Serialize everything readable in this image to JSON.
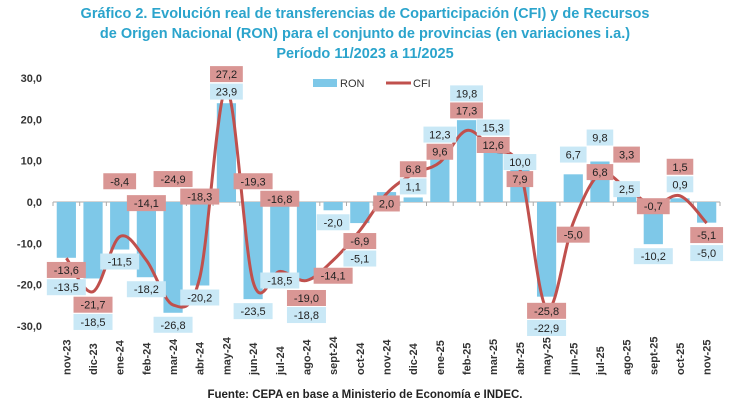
{
  "chart_data": {
    "type": "bar+line",
    "title_lines": [
      "Gráfico 2. Evolución real de transferencias de Coparticipación (CFI) y de Recursos",
      "de Origen Nacional (RON) para el conjunto de provincias (en variaciones i.a.)",
      "Período 11/2023 a 11/2025"
    ],
    "source": "Fuente: CEPA en base a Ministerio de Economía e INDEC.",
    "categories": [
      "nov-23",
      "dic-23",
      "ene-24",
      "feb-24",
      "mar-24",
      "abr-24",
      "may-24",
      "jun-24",
      "jul-24",
      "ago-24",
      "sept-24",
      "oct-24",
      "nov-24",
      "dic-24",
      "ene-25",
      "feb-25",
      "mar-25",
      "abr-25",
      "may-25",
      "jun-25",
      "jul-25",
      "ago-25",
      "sept-25",
      "oct-25",
      "nov-25"
    ],
    "series": [
      {
        "name": "RON",
        "type": "bar",
        "color": "#7ec8e8",
        "label_bg": "#c9e8f6",
        "values": [
          -13.5,
          -18.5,
          -11.5,
          -18.2,
          -26.8,
          -20.2,
          23.9,
          -23.5,
          -18.5,
          -18.8,
          -2.0,
          -5.1,
          2.4,
          1.1,
          12.3,
          19.8,
          15.3,
          10.0,
          -22.9,
          6.7,
          9.8,
          2.5,
          -10.2,
          0.9,
          -5.0
        ],
        "labels": [
          "-13,5",
          "-18,5",
          "-11,5",
          "-18,2",
          "-26,8",
          "-20,2",
          "23,9",
          "-23,5",
          "-18,5",
          "-18,8",
          "-2,0",
          "-5,1",
          "",
          "1,1",
          "12,3",
          "19,8",
          "15,3",
          "10,0",
          "-22,9",
          "6,7",
          "9,8",
          "2,5",
          "-10,2",
          "0,9",
          "-5,0"
        ]
      },
      {
        "name": "CFI",
        "type": "line",
        "color": "#c0504d",
        "label_bg": "#d99694",
        "values": [
          -13.6,
          -21.7,
          -8.4,
          -14.1,
          -24.9,
          -18.3,
          27.2,
          -19.3,
          -16.8,
          -19.0,
          -14.1,
          -6.9,
          2.0,
          6.8,
          9.6,
          17.3,
          12.6,
          7.9,
          -25.8,
          -5.0,
          6.8,
          3.3,
          -0.7,
          1.5,
          -5.1
        ],
        "labels": [
          "-13,6",
          "-21,7",
          "-8,4",
          "-14,1",
          "-24,9",
          "-18,3",
          "27,2",
          "-19,3",
          "-16,8",
          "-19,0",
          "-14,1",
          "-6,9",
          "2,0",
          "6,8",
          "9,6",
          "17,3",
          "12,6",
          "7,9",
          "-25,8",
          "-5,0",
          "6,8",
          "3,3",
          "-0,7",
          "1,5",
          "-5,1"
        ]
      }
    ],
    "ylim": [
      -30,
      30
    ],
    "yticks": [
      "-30,0",
      "-20,0",
      "-10,0",
      "0,0",
      "10,0",
      "20,0",
      "30,0"
    ],
    "grid": false,
    "legend": "top-center"
  }
}
